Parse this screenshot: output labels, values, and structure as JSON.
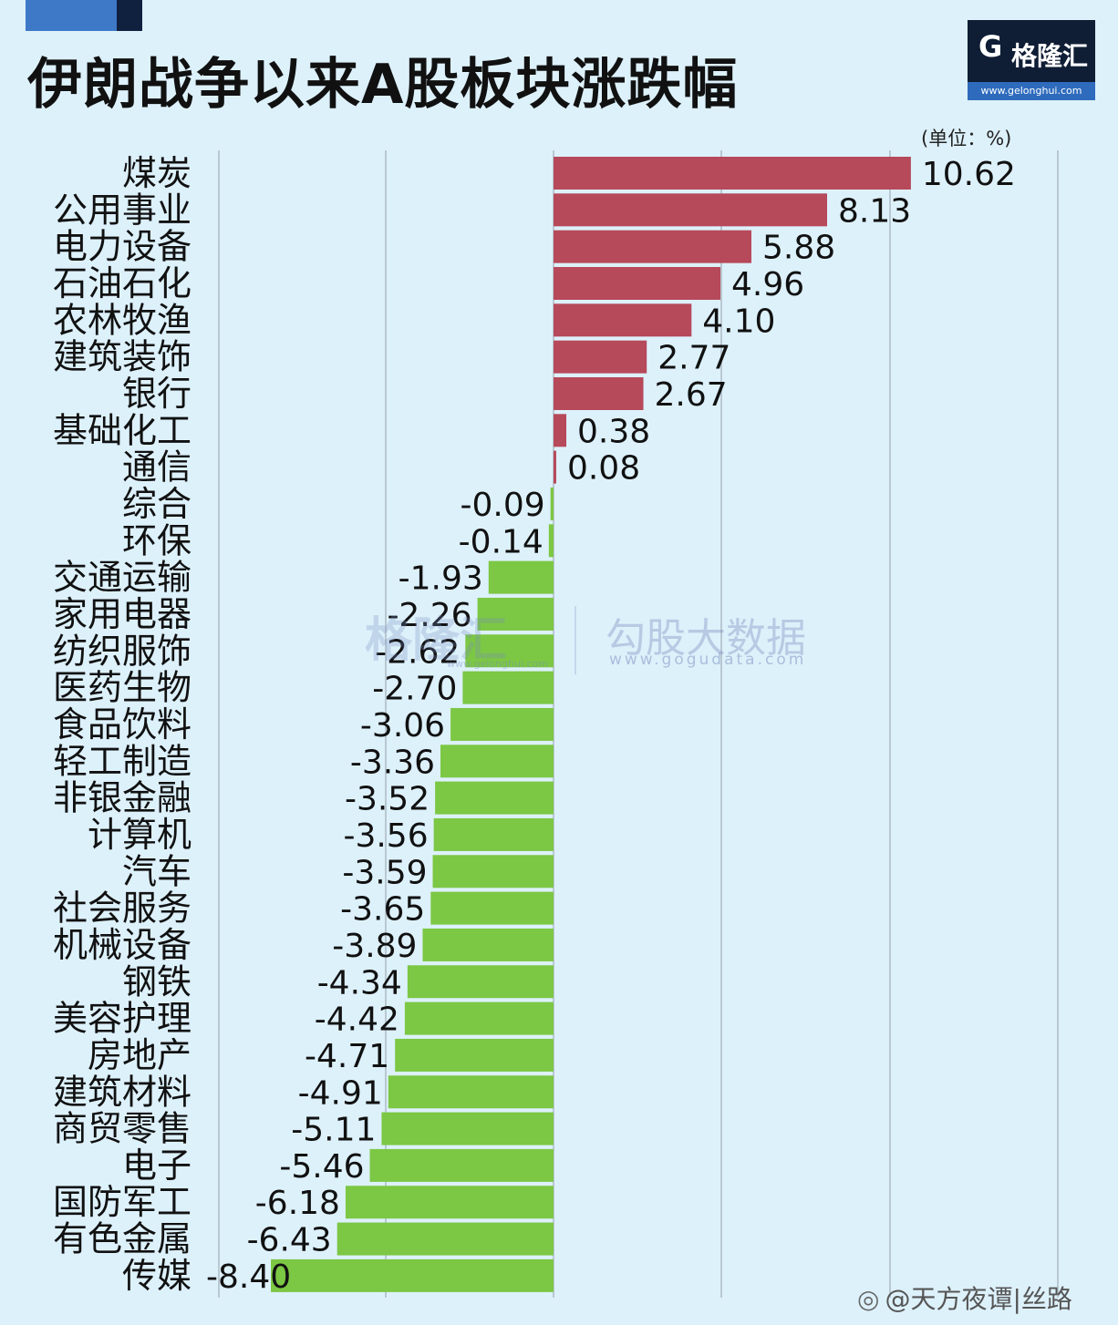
{
  "header": {
    "title": "伊朗战争以来A股板块涨跌幅",
    "logo_name": "格隆汇",
    "logo_url": "www.gelonghui.com"
  },
  "unit_note": "(单位：%)",
  "watermarks": {
    "left_name": "格隆汇",
    "left_url": "www.gelonghui.com",
    "right_name": "勾股大数据",
    "right_url": "www.gogudata.com"
  },
  "footer": {
    "weibo": "@天方夜谭|丝路"
  },
  "colors": {
    "positive": "#b6495a",
    "negative": "#7cc744",
    "background": "#ddf1fb",
    "grid": "#b9c8d2"
  },
  "chart_data": {
    "type": "bar",
    "orientation": "horizontal",
    "title": "伊朗战争以来A股板块涨跌幅",
    "unit": "%",
    "grid": true,
    "categories": [
      "煤炭",
      "公用事业",
      "电力设备",
      "石油石化",
      "农林牧渔",
      "建筑装饰",
      "银行",
      "基础化工",
      "通信",
      "综合",
      "环保",
      "交通运输",
      "家用电器",
      "纺织服饰",
      "医药生物",
      "食品饮料",
      "轻工制造",
      "非银金融",
      "计算机",
      "汽车",
      "社会服务",
      "机械设备",
      "钢铁",
      "美容护理",
      "房地产",
      "建筑材料",
      "商贸零售",
      "电子",
      "国防军工",
      "有色金属",
      "传媒"
    ],
    "values": [
      10.62,
      8.13,
      5.88,
      4.96,
      4.1,
      2.77,
      2.67,
      0.38,
      0.08,
      -0.09,
      -0.14,
      -1.93,
      -2.26,
      -2.62,
      -2.7,
      -3.06,
      -3.36,
      -3.52,
      -3.56,
      -3.59,
      -3.65,
      -3.89,
      -4.34,
      -4.42,
      -4.71,
      -4.91,
      -5.11,
      -5.46,
      -6.18,
      -6.43,
      -8.4
    ],
    "labels": [
      "10.62",
      "8.13",
      "5.88",
      "4.96",
      "4.10",
      "2.77",
      "2.67",
      "0.38",
      "0.08",
      "-0.09",
      "-0.14",
      "-1.93",
      "-2.26",
      "-2.62",
      "-2.70",
      "-3.06",
      "-3.36",
      "-3.52",
      "-3.56",
      "-3.59",
      "-3.65",
      "-3.89",
      "-4.34",
      "-4.42",
      "-4.71",
      "-4.91",
      "-5.11",
      "-5.46",
      "-6.18",
      "-6.43",
      "-8.40"
    ],
    "xlim": [
      -10,
      15
    ]
  }
}
